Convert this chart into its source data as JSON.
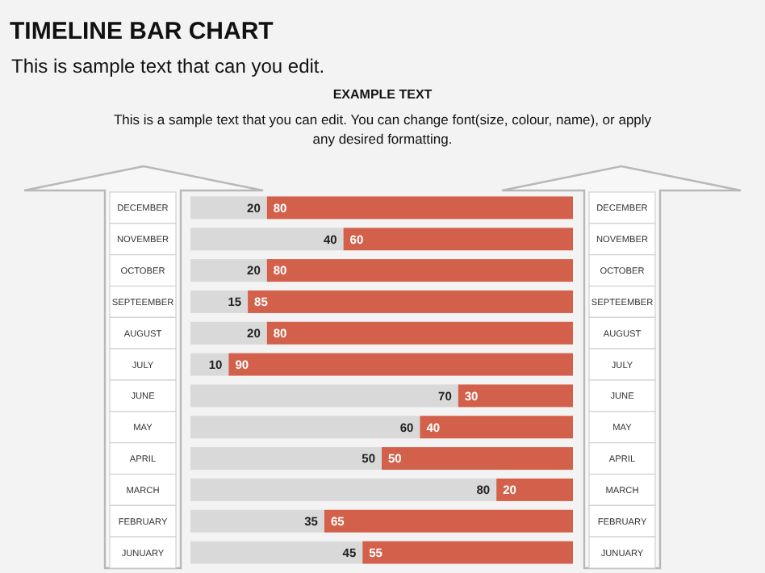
{
  "chart_data": {
    "type": "bar",
    "orientation": "horizontal",
    "stacked": true,
    "title": "TIMELINE BAR CHART",
    "subtitle": "This is sample text that can you edit.",
    "annotations": [
      "EXAMPLE TEXT",
      "This is a sample text that you can edit. You can change font(size, colour, name), or apply any desired formatting."
    ],
    "categories": [
      "DECEMBER",
      "NOVEMBER",
      "OCTOBER",
      "SEPTEEMBER",
      "AUGUST",
      "JULY",
      "JUNE",
      "MAY",
      "APRIL",
      "MARCH",
      "FEBRUARY",
      "JUNUARY"
    ],
    "series": [
      {
        "color": "#d9d9d9",
        "values": [
          20,
          40,
          20,
          15,
          20,
          10,
          70,
          60,
          50,
          80,
          35,
          45
        ]
      },
      {
        "color": "#d2604a",
        "values": [
          80,
          60,
          80,
          85,
          80,
          90,
          30,
          40,
          50,
          20,
          65,
          55
        ]
      }
    ],
    "xlim": [
      0,
      100
    ],
    "tick_labels": "y",
    "data_labels": true
  }
}
